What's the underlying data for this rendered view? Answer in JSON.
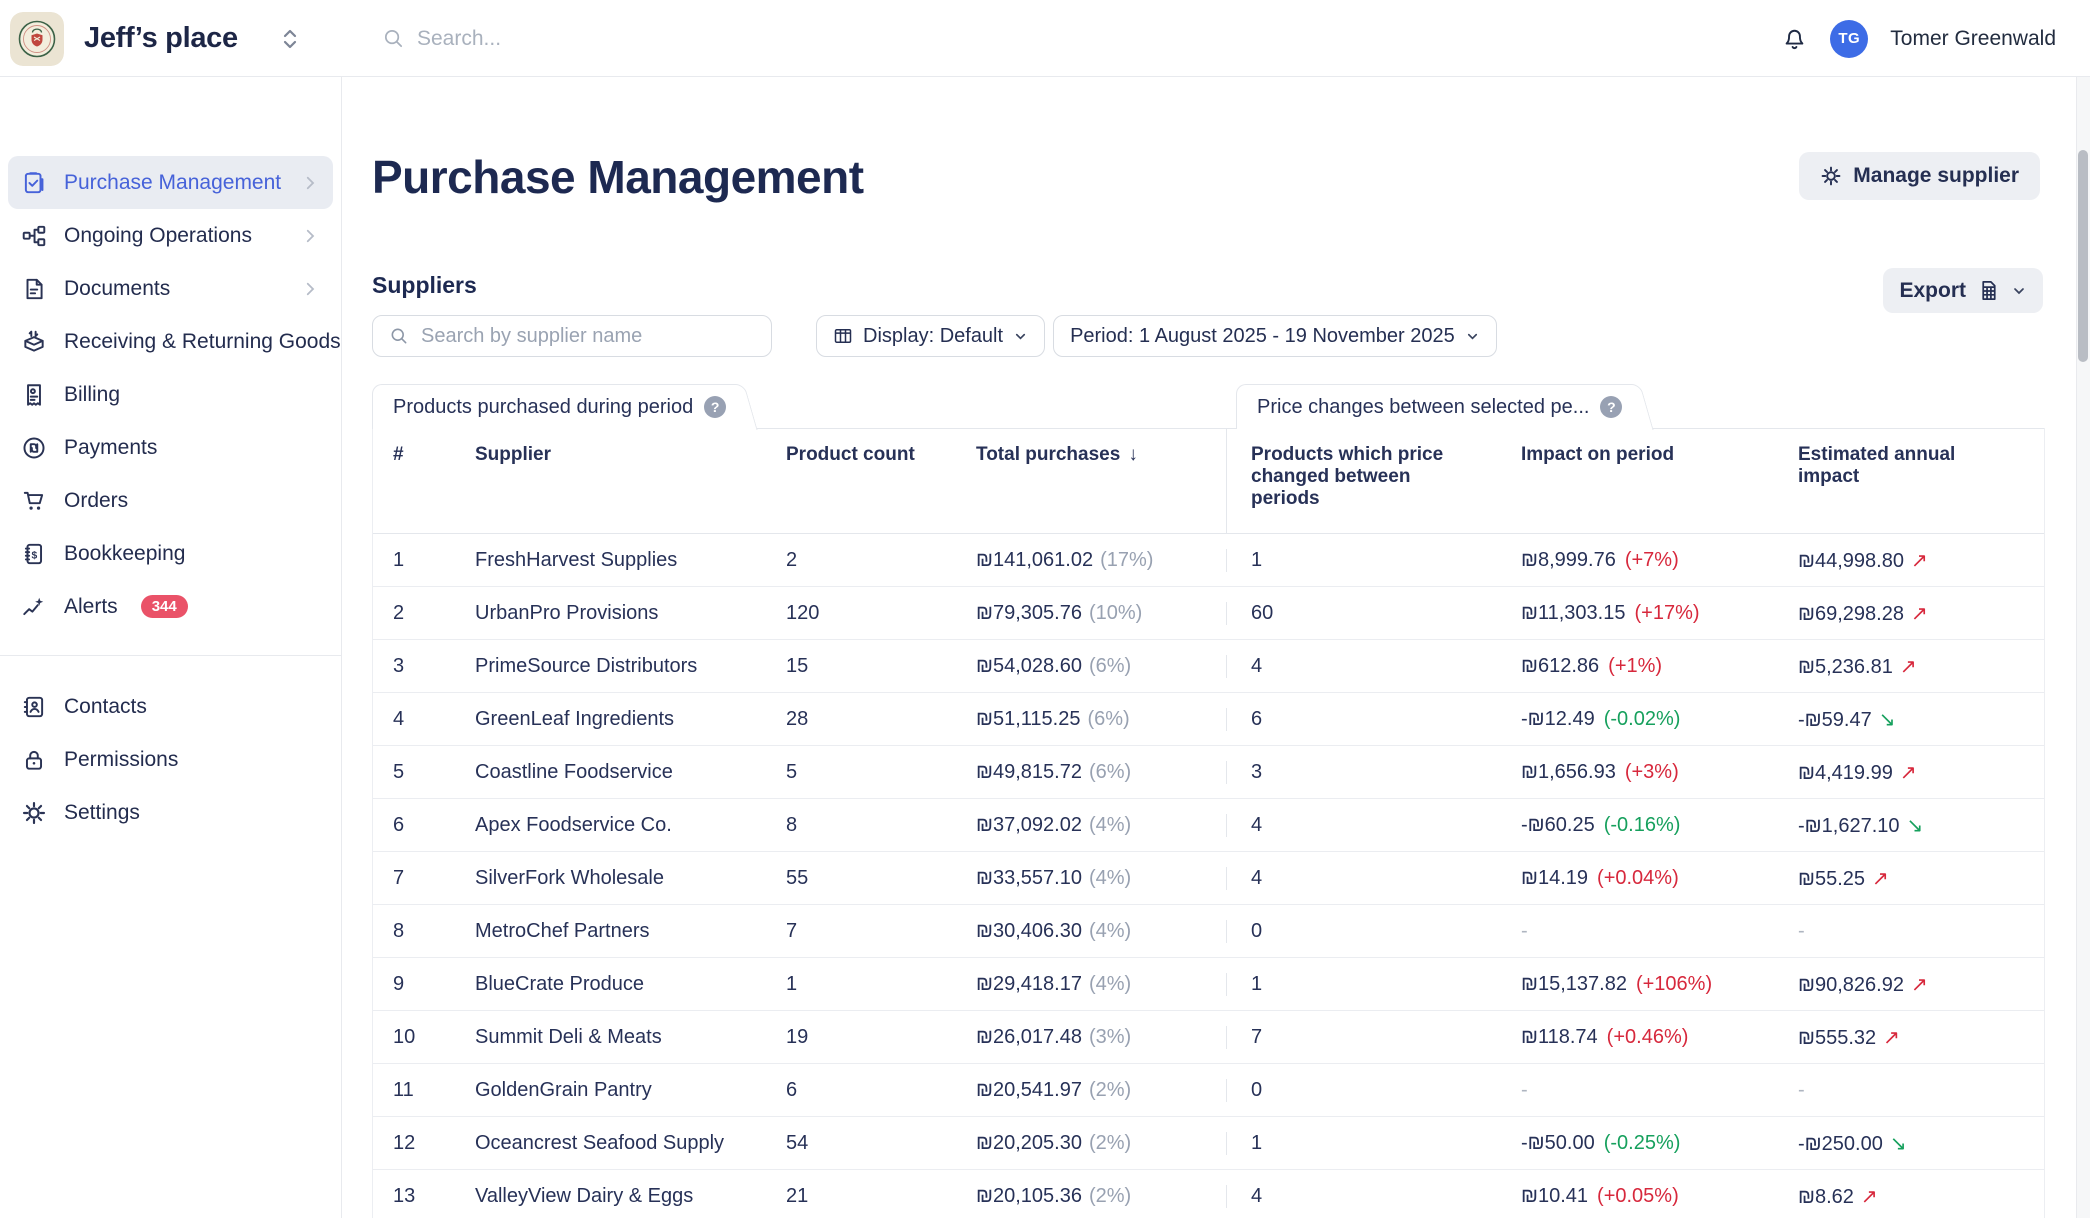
{
  "colors": {
    "accent_blue": "#4662d9",
    "negative_red": "#d7283c",
    "positive_green": "#16a05d",
    "badge_pink": "#ea5268",
    "avatar_blue": "#3d6ce6",
    "navy_text": "#273157"
  },
  "icons": {
    "trend_up": "↗",
    "trend_down": "↘",
    "sort_desc": "↓",
    "help": "?"
  },
  "topbar": {
    "workspace_name": "Jeff’s place",
    "search_placeholder": "Search...",
    "user": {
      "initials": "TG",
      "name": "Tomer Greenwald"
    }
  },
  "sidebar": {
    "items": [
      {
        "label": "Purchase Management",
        "icon": "clipboard-check-icon",
        "active": true,
        "chevron": true
      },
      {
        "label": "Ongoing Operations",
        "icon": "workflow-icon",
        "chevron": true
      },
      {
        "label": "Documents",
        "icon": "document-icon",
        "chevron": true
      },
      {
        "label": "Receiving & Returning Goods",
        "icon": "box-arrows-icon"
      },
      {
        "label": "Billing",
        "icon": "receipt-icon"
      },
      {
        "label": "Payments",
        "icon": "shekel-circle-icon"
      },
      {
        "label": "Orders",
        "icon": "cart-icon"
      },
      {
        "label": "Bookkeeping",
        "icon": "ledger-icon"
      },
      {
        "label": "Alerts",
        "icon": "sparkle-trend-icon",
        "badge": "344"
      }
    ],
    "footer_items": [
      {
        "label": "Contacts",
        "icon": "address-book-icon"
      },
      {
        "label": "Permissions",
        "icon": "lock-icon"
      },
      {
        "label": "Settings",
        "icon": "gear-icon"
      }
    ]
  },
  "page": {
    "title": "Purchase Management",
    "manage_supplier_label": "Manage supplier",
    "section_title": "Suppliers",
    "supplier_search_placeholder": "Search by supplier name",
    "display_label": "Display: Default",
    "period_label": "Period: 1 August 2025 - 19 November 2025",
    "export_label": "Export"
  },
  "table": {
    "tab_products": "Products purchased during period",
    "tab_price_changes": "Price changes between selected pe...",
    "columns": {
      "rank": "#",
      "supplier": "Supplier",
      "product_count": "Product count",
      "total_purchases": "Total purchases",
      "products_changed": "Products which price changed between periods",
      "impact_on_period": "Impact on period",
      "estimated_annual_impact": "Estimated annual impact"
    },
    "sorted_by": "Total purchases",
    "rows": [
      {
        "rank": "1",
        "supplier": "FreshHarvest Supplies",
        "product_count": "2",
        "total_purchases": "₪141,061.02",
        "total_share": "(17%)",
        "products_changed": "1",
        "impact": "₪8,999.76",
        "impact_pct": "(+7%)",
        "annual_impact": "₪44,998.80",
        "trend": "up"
      },
      {
        "rank": "2",
        "supplier": "UrbanPro Provisions",
        "product_count": "120",
        "total_purchases": "₪79,305.76",
        "total_share": "(10%)",
        "products_changed": "60",
        "impact": "₪11,303.15",
        "impact_pct": "(+17%)",
        "annual_impact": "₪69,298.28",
        "trend": "up"
      },
      {
        "rank": "3",
        "supplier": "PrimeSource Distributors",
        "product_count": "15",
        "total_purchases": "₪54,028.60",
        "total_share": "(6%)",
        "products_changed": "4",
        "impact": "₪612.86",
        "impact_pct": "(+1%)",
        "annual_impact": "₪5,236.81",
        "trend": "up"
      },
      {
        "rank": "4",
        "supplier": "GreenLeaf Ingredients",
        "product_count": "28",
        "total_purchases": "₪51,115.25",
        "total_share": "(6%)",
        "products_changed": "6",
        "impact": "-₪12.49",
        "impact_pct": "(-0.02%)",
        "annual_impact": "-₪59.47",
        "trend": "down"
      },
      {
        "rank": "5",
        "supplier": "Coastline Foodservice",
        "product_count": "5",
        "total_purchases": "₪49,815.72",
        "total_share": "(6%)",
        "products_changed": "3",
        "impact": "₪1,656.93",
        "impact_pct": "(+3%)",
        "annual_impact": "₪4,419.99",
        "trend": "up"
      },
      {
        "rank": "6",
        "supplier": "Apex Foodservice Co.",
        "product_count": "8",
        "total_purchases": "₪37,092.02",
        "total_share": "(4%)",
        "products_changed": "4",
        "impact": "-₪60.25",
        "impact_pct": "(-0.16%)",
        "annual_impact": "-₪1,627.10",
        "trend": "down"
      },
      {
        "rank": "7",
        "supplier": "SilverFork Wholesale",
        "product_count": "55",
        "total_purchases": "₪33,557.10",
        "total_share": "(4%)",
        "products_changed": "4",
        "impact": "₪14.19",
        "impact_pct": "(+0.04%)",
        "annual_impact": "₪55.25",
        "trend": "up"
      },
      {
        "rank": "8",
        "supplier": "MetroChef Partners",
        "product_count": "7",
        "total_purchases": "₪30,406.30",
        "total_share": "(4%)",
        "products_changed": "0",
        "impact": "-",
        "impact_pct": "",
        "annual_impact": "-",
        "trend": "none"
      },
      {
        "rank": "9",
        "supplier": "BlueCrate Produce",
        "product_count": "1",
        "total_purchases": "₪29,418.17",
        "total_share": "(4%)",
        "products_changed": "1",
        "impact": "₪15,137.82",
        "impact_pct": "(+106%)",
        "annual_impact": "₪90,826.92",
        "trend": "up"
      },
      {
        "rank": "10",
        "supplier": "Summit Deli & Meats",
        "product_count": "19",
        "total_purchases": "₪26,017.48",
        "total_share": "(3%)",
        "products_changed": "7",
        "impact": "₪118.74",
        "impact_pct": "(+0.46%)",
        "annual_impact": "₪555.32",
        "trend": "up"
      },
      {
        "rank": "11",
        "supplier": "GoldenGrain Pantry",
        "product_count": "6",
        "total_purchases": "₪20,541.97",
        "total_share": "(2%)",
        "products_changed": "0",
        "impact": "-",
        "impact_pct": "",
        "annual_impact": "-",
        "trend": "none"
      },
      {
        "rank": "12",
        "supplier": "Oceancrest Seafood Supply",
        "product_count": "54",
        "total_purchases": "₪20,205.30",
        "total_share": "(2%)",
        "products_changed": "1",
        "impact": "-₪50.00",
        "impact_pct": "(-0.25%)",
        "annual_impact": "-₪250.00",
        "trend": "down"
      },
      {
        "rank": "13",
        "supplier": "ValleyView Dairy & Eggs",
        "product_count": "21",
        "total_purchases": "₪20,105.36",
        "total_share": "(2%)",
        "products_changed": "4",
        "impact": "₪10.41",
        "impact_pct": "(+0.05%)",
        "annual_impact": "₪8.62",
        "trend": "up"
      }
    ]
  }
}
